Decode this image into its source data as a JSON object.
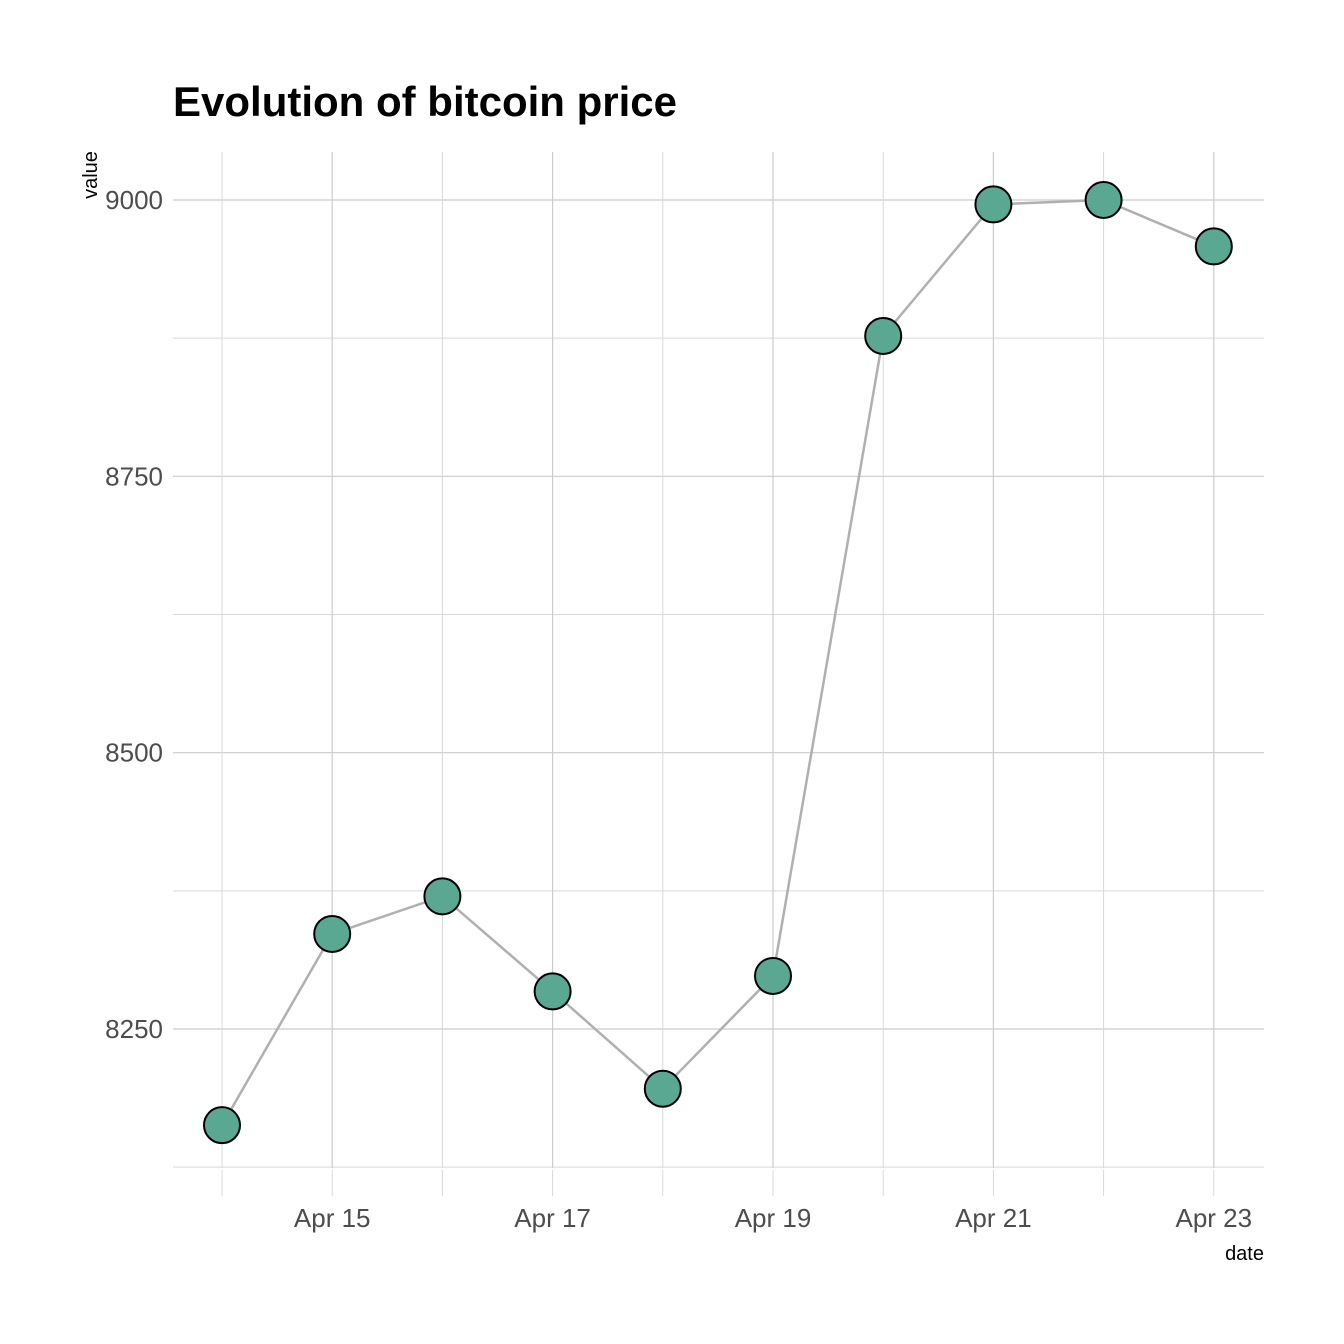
{
  "chart_data": {
    "type": "line",
    "title": "Evolution of bitcoin price",
    "xlabel": "date",
    "ylabel": "value",
    "x": [
      "Apr 14",
      "Apr 15",
      "Apr 16",
      "Apr 17",
      "Apr 18",
      "Apr 19",
      "Apr 20",
      "Apr 21",
      "Apr 22",
      "Apr 23"
    ],
    "values": [
      8163,
      8336,
      8370,
      8284,
      8196,
      8298,
      8877,
      8996,
      9000,
      8958
    ],
    "x_tick_labels": [
      "Apr 15",
      "Apr 17",
      "Apr 19",
      "Apr 21",
      "Apr 23"
    ],
    "y_ticks": [
      8250,
      8500,
      8750,
      9000
    ],
    "y_tick_labels": [
      "8250",
      "8500",
      "8750",
      "9000"
    ],
    "y_minor_ticks": [
      8125,
      8375,
      8625,
      8875
    ],
    "ylim": [
      8125,
      9042
    ],
    "grid": true,
    "line_color": "#b0b0b0",
    "point_fill": "#5aa891",
    "point_stroke": "#000000"
  }
}
